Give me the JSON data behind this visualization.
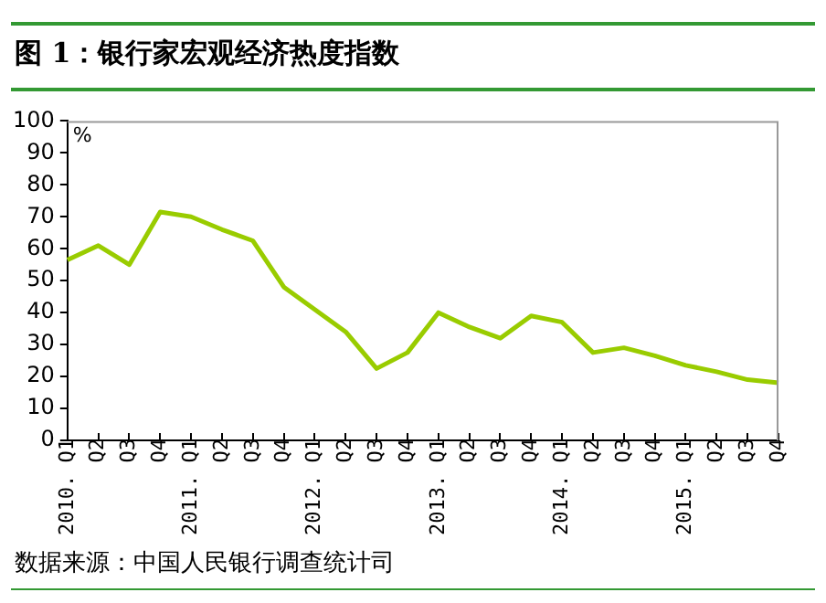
{
  "chart_data": {
    "type": "line",
    "title": "图 1：银行家宏观经济热度指数",
    "ylabel": "%",
    "categories": [
      "2010. Q1",
      "Q2",
      "Q3",
      "Q4",
      "2011. Q1",
      "Q2",
      "Q3",
      "Q4",
      "2012. Q1",
      "Q2",
      "Q3",
      "Q4",
      "2013. Q1",
      "Q2",
      "Q3",
      "Q4",
      "2014. Q1",
      "Q2",
      "Q3",
      "Q4",
      "2015. Q1",
      "Q2",
      "Q3",
      "Q4"
    ],
    "series": [
      {
        "color": "#99cc00",
        "values": [
          56.5,
          61,
          55,
          71.5,
          70,
          66,
          62.5,
          48,
          41,
          34,
          22.5,
          27.5,
          40,
          35.5,
          32,
          39,
          37,
          27.5,
          29,
          26.5,
          23.5,
          21.5,
          19,
          18
        ]
      }
    ],
    "ylim": [
      0,
      100
    ],
    "yticks": [
      0,
      10,
      20,
      30,
      40,
      50,
      60,
      70,
      80,
      90,
      100
    ],
    "grid": false,
    "legend": false,
    "marker": "none",
    "line_style": "solid",
    "annotations": [
      "数据来源：中国人民银行调查统计司"
    ]
  }
}
